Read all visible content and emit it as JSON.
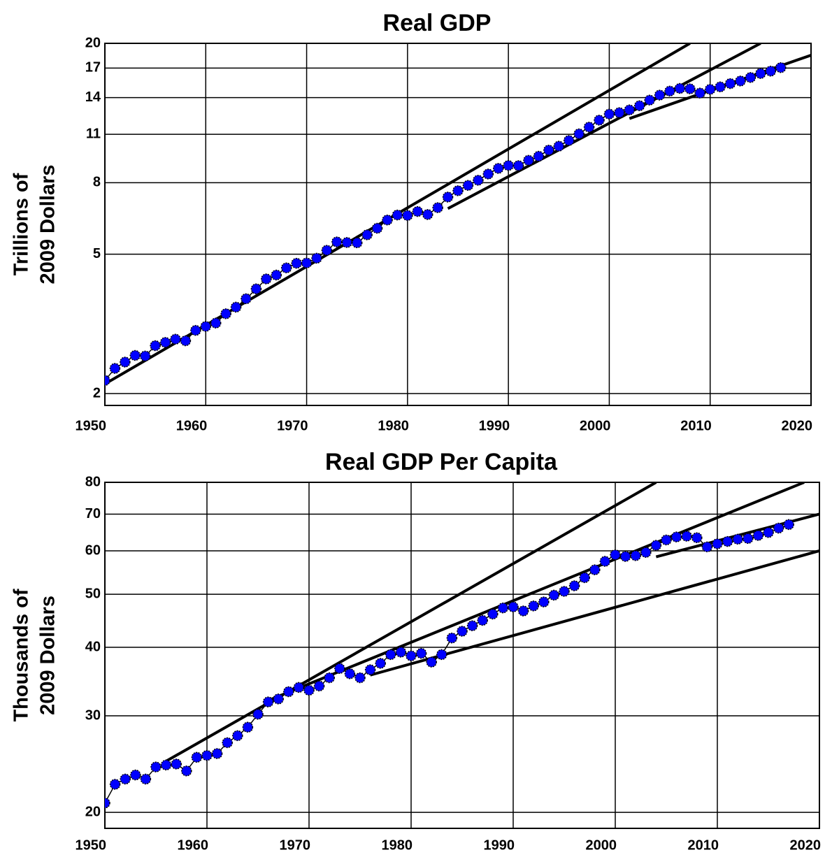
{
  "chart_data": [
    {
      "type": "line",
      "title": "Real GDP",
      "y_label": [
        "Trillions of",
        "2009 Dollars"
      ],
      "log_scale": true,
      "grid": true,
      "color": "#0000ff",
      "line_color": "#000000",
      "xlim": [
        1950,
        2020
      ],
      "xticks": [
        1950,
        1960,
        1970,
        1980,
        1990,
        2000,
        2010,
        2020
      ],
      "ylim": [
        1.85,
        20
      ],
      "yticks": [
        2,
        5,
        8,
        11,
        14,
        17,
        20
      ],
      "x": [
        1950,
        1951,
        1952,
        1953,
        1954,
        1955,
        1956,
        1957,
        1958,
        1959,
        1960,
        1961,
        1962,
        1963,
        1964,
        1965,
        1966,
        1967,
        1968,
        1969,
        1970,
        1971,
        1972,
        1973,
        1974,
        1975,
        1976,
        1977,
        1978,
        1979,
        1980,
        1981,
        1982,
        1983,
        1984,
        1985,
        1986,
        1987,
        1988,
        1989,
        1990,
        1991,
        1992,
        1993,
        1994,
        1995,
        1996,
        1997,
        1998,
        1999,
        2000,
        2001,
        2002,
        2003,
        2004,
        2005,
        2006,
        2007,
        2008,
        2009,
        2010,
        2011,
        2012,
        2013,
        2014,
        2015,
        2016,
        2017
      ],
      "values": [
        2.18,
        2.36,
        2.46,
        2.57,
        2.56,
        2.74,
        2.8,
        2.86,
        2.83,
        3.03,
        3.11,
        3.18,
        3.38,
        3.53,
        3.73,
        3.98,
        4.25,
        4.36,
        4.57,
        4.71,
        4.72,
        4.87,
        5.13,
        5.42,
        5.4,
        5.39,
        5.68,
        5.93,
        6.26,
        6.47,
        6.45,
        6.62,
        6.49,
        6.79,
        7.28,
        7.59,
        7.86,
        8.13,
        8.47,
        8.79,
        8.96,
        8.95,
        9.27,
        9.52,
        9.91,
        10.17,
        10.56,
        11.03,
        11.53,
        12.07,
        12.56,
        12.68,
        12.91,
        13.27,
        13.77,
        14.23,
        14.61,
        14.87,
        14.83,
        14.42,
        14.78,
        15.02,
        15.35,
        15.61,
        15.98,
        16.4,
        16.66,
        17.05
      ],
      "trend_lines": [
        {
          "x": [
            1950,
            2008
          ],
          "values": [
            2.13,
            20
          ]
        },
        {
          "x": [
            1984,
            2015
          ],
          "values": [
            6.75,
            20
          ]
        },
        {
          "x": [
            2002,
            2020
          ],
          "values": [
            12.2,
            18.5
          ]
        }
      ]
    },
    {
      "type": "line",
      "title": "Real GDP  Per Capita",
      "y_label": [
        "Thousands of",
        "2009 Dollars"
      ],
      "log_scale": true,
      "grid": true,
      "color": "#0000ff",
      "line_color": "#000000",
      "xlim": [
        1950,
        2020
      ],
      "xticks": [
        1950,
        1960,
        1970,
        1980,
        1990,
        2000,
        2010,
        2020
      ],
      "ylim": [
        18.7,
        80
      ],
      "yticks": [
        20,
        30,
        40,
        50,
        60,
        70,
        80
      ],
      "x": [
        1950,
        1951,
        1952,
        1953,
        1954,
        1955,
        1956,
        1957,
        1958,
        1959,
        1960,
        1961,
        1962,
        1963,
        1964,
        1965,
        1966,
        1967,
        1968,
        1969,
        1970,
        1971,
        1972,
        1973,
        1974,
        1975,
        1976,
        1977,
        1978,
        1979,
        1980,
        1981,
        1982,
        1983,
        1984,
        1985,
        1986,
        1987,
        1988,
        1989,
        1990,
        1991,
        1992,
        1993,
        1994,
        1995,
        1996,
        1997,
        1998,
        1999,
        2000,
        2001,
        2002,
        2003,
        2004,
        2005,
        2006,
        2007,
        2008,
        2009,
        2010,
        2011,
        2012,
        2013,
        2014,
        2015,
        2016,
        2017
      ],
      "values": [
        20.8,
        22.5,
        23.0,
        23.4,
        23.0,
        24.2,
        24.4,
        24.5,
        23.8,
        25.2,
        25.4,
        25.6,
        26.8,
        27.6,
        28.6,
        30.2,
        31.8,
        32.2,
        33.2,
        33.8,
        33.4,
        34.0,
        35.2,
        36.6,
        35.8,
        35.2,
        36.4,
        37.4,
        38.8,
        39.2,
        38.6,
        39.0,
        37.6,
        38.8,
        41.6,
        42.8,
        43.8,
        44.8,
        46.0,
        47.2,
        47.4,
        46.6,
        47.6,
        48.4,
        49.8,
        50.6,
        51.8,
        53.6,
        55.4,
        57.4,
        59.0,
        58.6,
        58.8,
        59.6,
        61.4,
        62.8,
        63.6,
        63.8,
        63.4,
        61.0,
        61.8,
        62.4,
        63.0,
        63.2,
        64.0,
        64.8,
        66.0,
        67.0
      ],
      "trend_lines": [
        {
          "x": [
            1956,
            2004
          ],
          "values": [
            24.8,
            80
          ]
        },
        {
          "x": [
            1966,
            2018.5
          ],
          "values": [
            32,
            80
          ]
        },
        {
          "x": [
            1976,
            2020
          ],
          "values": [
            35.6,
            60
          ]
        },
        {
          "x": [
            2004,
            2020
          ],
          "values": [
            58.5,
            70
          ]
        }
      ]
    }
  ]
}
